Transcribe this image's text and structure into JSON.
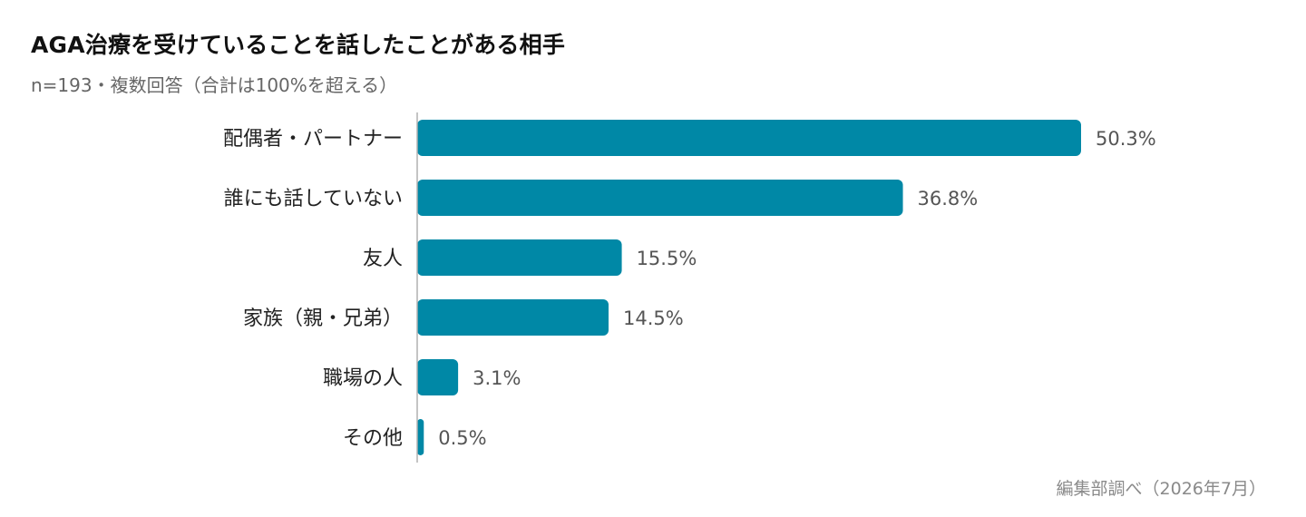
{
  "chart_data": {
    "type": "bar",
    "orientation": "horizontal",
    "title": "AGA治療を受けていることを話したことがある相手",
    "subtitle": "n=193・複数回答（合計は100%を超える）",
    "categories": [
      "配偶者・パートナー",
      "誰にも話していない",
      "友人",
      "家族（親・兄弟）",
      "職場の人",
      "その他"
    ],
    "values": [
      50.3,
      36.8,
      15.5,
      14.5,
      3.1,
      0.5
    ],
    "value_labels": [
      "50.3%",
      "36.8%",
      "15.5%",
      "14.5%",
      "3.1%",
      "0.5%"
    ],
    "unit": "%",
    "xlim": [
      0,
      50.3
    ],
    "grid": false,
    "legend": "none",
    "source": "編集部調べ（2026年7月）",
    "colors": {
      "bar": "#0088a6",
      "axis": "#b0b0b0"
    }
  }
}
